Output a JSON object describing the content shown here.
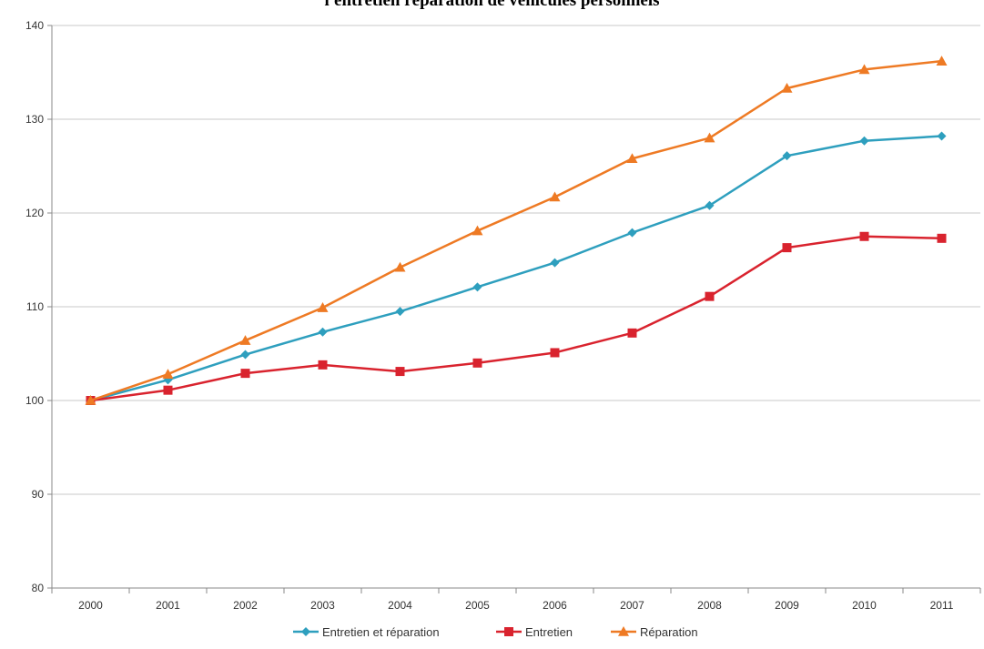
{
  "chart_data": {
    "type": "line",
    "title": "l'entretien réparation de véhicules personnels",
    "xlabel": "",
    "ylabel": "",
    "x": [
      "2000",
      "2001",
      "2002",
      "2003",
      "2004",
      "2005",
      "2006",
      "2007",
      "2008",
      "2009",
      "2010",
      "2011"
    ],
    "ylim": [
      80,
      140
    ],
    "yticks": [
      80,
      90,
      100,
      110,
      120,
      130,
      140
    ],
    "grid": true,
    "legend_position": "bottom",
    "series": [
      {
        "name": "Entretien et réparation",
        "color": "#2E9FBE",
        "marker": "diamond",
        "values": [
          100,
          102.2,
          104.9,
          107.3,
          109.5,
          112.1,
          114.7,
          117.9,
          120.8,
          126.1,
          127.7,
          128.2
        ]
      },
      {
        "name": "Entretien",
        "color": "#D9232E",
        "marker": "square",
        "values": [
          100,
          101.1,
          102.9,
          103.8,
          103.1,
          104.0,
          105.1,
          107.2,
          111.1,
          116.3,
          117.5,
          117.3
        ]
      },
      {
        "name": "Réparation",
        "color": "#EE7A24",
        "marker": "triangle",
        "values": [
          100,
          102.8,
          106.4,
          109.9,
          114.2,
          118.1,
          121.7,
          125.8,
          128.0,
          133.3,
          135.3,
          136.2
        ]
      }
    ]
  }
}
